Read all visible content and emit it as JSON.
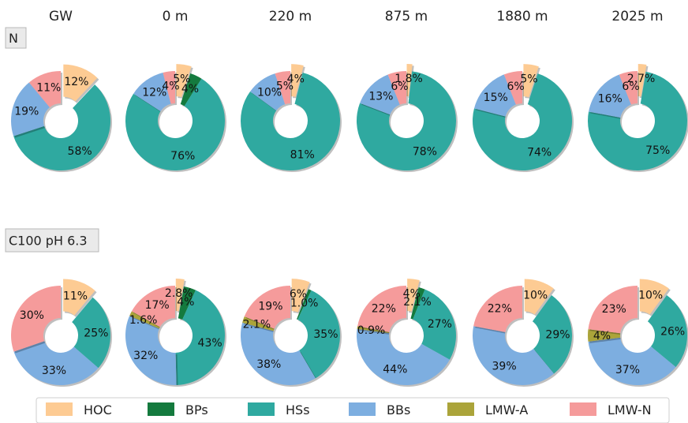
{
  "chart_data": {
    "type": "pie",
    "style": "donut",
    "columns": [
      "GW",
      "0 m",
      "220 m",
      "875 m",
      "1880 m",
      "2025 m"
    ],
    "rows": [
      "N",
      "C100 pH 6.3"
    ],
    "categories": [
      "HOC",
      "BPs",
      "HSs",
      "BBs",
      "LMW-A",
      "LMW-N"
    ],
    "colors": {
      "HOC": "#fdcb93",
      "BPs": "#147a3e",
      "HSs": "#2fa9a0",
      "BBs": "#7daee0",
      "LMW-A": "#aba43a",
      "LMW-N": "#f59b9b"
    },
    "exploded_category": "HOC",
    "legend_position": "bottom",
    "panels": [
      {
        "row": "N",
        "column": "GW",
        "values": [
          12,
          0,
          58,
          19,
          0,
          11
        ],
        "labels": [
          "12%",
          "",
          "58%",
          "19%",
          "",
          "11%"
        ]
      },
      {
        "row": "N",
        "column": "0 m",
        "values": [
          5,
          4,
          76,
          12,
          0,
          4
        ],
        "labels": [
          "5%",
          "4%",
          "76%",
          "12%",
          "",
          "4%"
        ]
      },
      {
        "row": "N",
        "column": "220 m",
        "values": [
          4,
          0,
          81,
          10,
          0,
          5
        ],
        "labels": [
          "4%",
          "",
          "81%",
          "10%",
          "",
          "5%"
        ]
      },
      {
        "row": "N",
        "column": "875 m",
        "values": [
          1.8,
          0,
          78,
          13,
          0,
          6
        ],
        "labels": [
          "1.8%",
          "",
          "78%",
          "13%",
          "",
          "6%"
        ]
      },
      {
        "row": "N",
        "column": "1880 m",
        "values": [
          5,
          0,
          74,
          15,
          0,
          6
        ],
        "labels": [
          "5%",
          "",
          "74%",
          "15%",
          "",
          "6%"
        ]
      },
      {
        "row": "N",
        "column": "2025 m",
        "values": [
          2.7,
          0,
          75,
          16,
          0,
          6
        ],
        "labels": [
          "2.7%",
          "",
          "75%",
          "16%",
          "",
          "6%"
        ]
      },
      {
        "row": "C100 pH 6.3",
        "column": "GW",
        "values": [
          11,
          0,
          25,
          33,
          0,
          30
        ],
        "labels": [
          "11%",
          "",
          "25%",
          "33%",
          "",
          "30%"
        ]
      },
      {
        "row": "C100 pH 6.3",
        "column": "0 m",
        "values": [
          2.8,
          4,
          43,
          32,
          1.6,
          17
        ],
        "labels": [
          "2.8%",
          "4%",
          "43%",
          "32%",
          "1.6%",
          "17%"
        ]
      },
      {
        "row": "C100 pH 6.3",
        "column": "220 m",
        "values": [
          6,
          1.0,
          35,
          38,
          2.1,
          19
        ],
        "labels": [
          "6%",
          "1.0%",
          "35%",
          "38%",
          "2.1%",
          "19%"
        ]
      },
      {
        "row": "C100 pH 6.3",
        "column": "875 m",
        "values": [
          4,
          2.1,
          27,
          44,
          0.9,
          22
        ],
        "labels": [
          "4%",
          "2.1%",
          "27%",
          "44%",
          "0.9%",
          "22%"
        ]
      },
      {
        "row": "C100 pH 6.3",
        "column": "1880 m",
        "values": [
          10,
          0,
          29,
          39,
          0,
          22
        ],
        "labels": [
          "10%",
          "",
          "29%",
          "39%",
          "",
          "22%"
        ]
      },
      {
        "row": "C100 pH 6.3",
        "column": "2025 m",
        "values": [
          10,
          0,
          26,
          37,
          4,
          23
        ],
        "labels": [
          "10%",
          "",
          "26%",
          "37%",
          "4%",
          "23%"
        ]
      }
    ]
  }
}
